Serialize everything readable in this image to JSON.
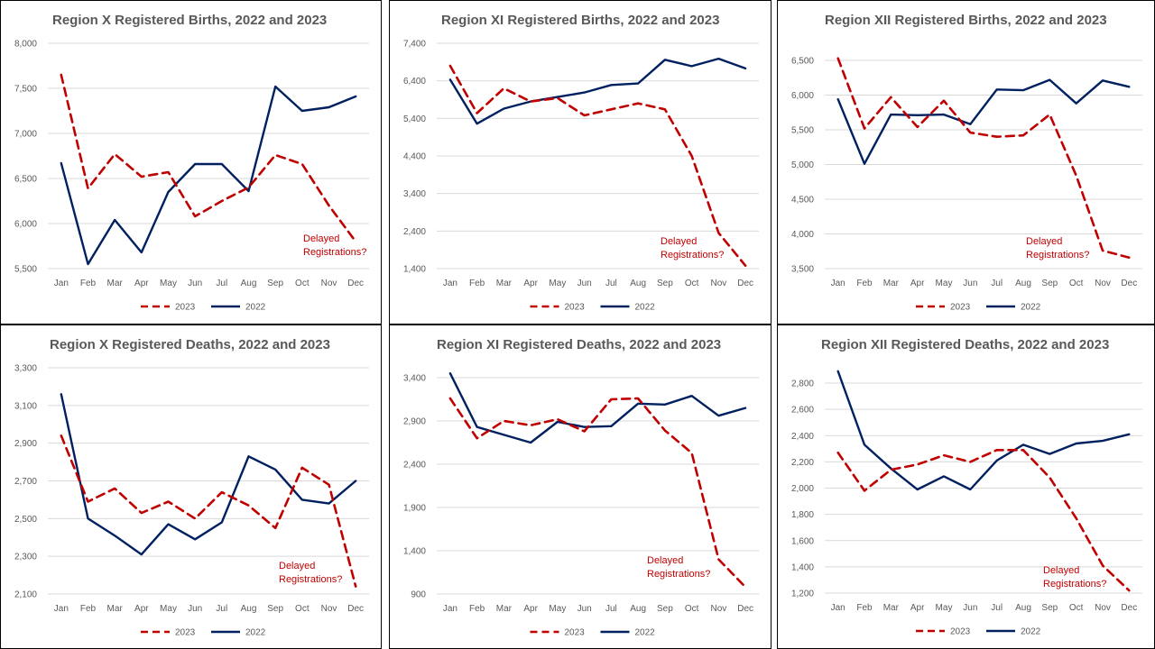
{
  "colors": {
    "series_2023": "#c00000",
    "series_2022": "#002060",
    "grid": "#d9d9d9",
    "text": "#595959"
  },
  "chart_data": [
    {
      "type": "line",
      "title": "Region X  Registered Births, 2022 and 2023",
      "categories": [
        "Jan",
        "Feb",
        "Mar",
        "Apr",
        "May",
        "Jun",
        "Jul",
        "Aug",
        "Sep",
        "Oct",
        "Nov",
        "Dec"
      ],
      "ylim": [
        5500,
        8000
      ],
      "yticks": [
        5500,
        6000,
        6500,
        7000,
        7500,
        8000
      ],
      "tick_labels": [
        "5,500",
        "6,000",
        "6,500",
        "7,000",
        "7,500",
        "8,000"
      ],
      "series": [
        {
          "name": "2023",
          "style": "dashed",
          "values": [
            7650,
            6390,
            6770,
            6520,
            6570,
            6080,
            6250,
            6400,
            6760,
            6660,
            6200,
            5800
          ]
        },
        {
          "name": "2022",
          "style": "solid",
          "values": [
            6670,
            5550,
            6040,
            5680,
            6350,
            6660,
            6660,
            6360,
            7520,
            7250,
            7290,
            7410
          ]
        }
      ],
      "annotation": [
        "Delayed",
        "Registrations?"
      ],
      "grid": true,
      "legend": "bottom"
    },
    {
      "type": "line",
      "title": "Region XI  Registered Births, 2022 and 2023",
      "categories": [
        "Jan",
        "Feb",
        "Mar",
        "Apr",
        "May",
        "Jun",
        "Jul",
        "Aug",
        "Sep",
        "Oct",
        "Nov",
        "Dec"
      ],
      "ylim": [
        1400,
        7400
      ],
      "yticks": [
        1400,
        2400,
        3400,
        4400,
        5400,
        6400,
        7400
      ],
      "tick_labels": [
        "1,400",
        "2,400",
        "3,400",
        "4,400",
        "5,400",
        "6,400",
        "7,400"
      ],
      "series": [
        {
          "name": "2023",
          "style": "dashed",
          "values": [
            6800,
            5540,
            6200,
            5850,
            5940,
            5480,
            5640,
            5800,
            5640,
            4400,
            2350,
            1480
          ]
        },
        {
          "name": "2022",
          "style": "solid",
          "values": [
            6430,
            5260,
            5660,
            5850,
            5970,
            6090,
            6290,
            6330,
            6960,
            6790,
            6990,
            6730
          ]
        }
      ],
      "annotation": [
        "Delayed",
        "Registrations?"
      ],
      "grid": true,
      "legend": "bottom"
    },
    {
      "type": "line",
      "title": "Region XII  Registered Births, 2022 and 2023",
      "categories": [
        "Jan",
        "Feb",
        "Mar",
        "Apr",
        "May",
        "Jun",
        "Jul",
        "Aug",
        "Sep",
        "Oct",
        "Nov",
        "Dec"
      ],
      "ylim": [
        3500,
        6500
      ],
      "yticks": [
        3500,
        4000,
        4500,
        5000,
        5500,
        6000,
        6500
      ],
      "tick_labels": [
        "3,500",
        "4,000",
        "4,500",
        "5,000",
        "5,500",
        "6,000",
        "6,500"
      ],
      "series": [
        {
          "name": "2023",
          "style": "dashed",
          "values": [
            6530,
            5520,
            5970,
            5540,
            5920,
            5460,
            5400,
            5420,
            5720,
            4840,
            3760,
            3660
          ]
        },
        {
          "name": "2022",
          "style": "solid",
          "values": [
            5940,
            5010,
            5720,
            5710,
            5720,
            5580,
            6080,
            6070,
            6220,
            5880,
            6210,
            6120
          ]
        }
      ],
      "annotation": [
        "Delayed",
        "Registrations?"
      ],
      "grid": true,
      "legend": "bottom"
    },
    {
      "type": "line",
      "title": "Region X  Registered Deaths, 2022 and 2023",
      "categories": [
        "Jan",
        "Feb",
        "Mar",
        "Apr",
        "May",
        "Jun",
        "Jul",
        "Aug",
        "Sep",
        "Oct",
        "Nov",
        "Dec"
      ],
      "ylim": [
        2100,
        3300
      ],
      "yticks": [
        2100,
        2300,
        2500,
        2700,
        2900,
        3100,
        3300
      ],
      "tick_labels": [
        "2,100",
        "2,300",
        "2,500",
        "2,700",
        "2,900",
        "3,100",
        "3,300"
      ],
      "series": [
        {
          "name": "2023",
          "style": "dashed",
          "values": [
            2940,
            2590,
            2660,
            2530,
            2590,
            2500,
            2640,
            2570,
            2450,
            2770,
            2680,
            2140
          ]
        },
        {
          "name": "2022",
          "style": "solid",
          "values": [
            3160,
            2500,
            2410,
            2310,
            2470,
            2390,
            2480,
            2830,
            2760,
            2600,
            2580,
            2700
          ]
        }
      ],
      "annotation": [
        "Delayed",
        "Registrations?"
      ],
      "grid": true,
      "legend": "bottom"
    },
    {
      "type": "line",
      "title": "Region XI  Registered Deaths, 2022 and 2023",
      "categories": [
        "Jan",
        "Feb",
        "Mar",
        "Apr",
        "May",
        "Jun",
        "Jul",
        "Aug",
        "Sep",
        "Oct",
        "Nov",
        "Dec"
      ],
      "ylim": [
        900,
        3400
      ],
      "yticks": [
        900,
        1400,
        1900,
        2400,
        2900,
        3400
      ],
      "tick_labels": [
        "900",
        "1,400",
        "1,900",
        "2,400",
        "2,900",
        "3,400"
      ],
      "series": [
        {
          "name": "2023",
          "style": "dashed",
          "values": [
            3160,
            2700,
            2900,
            2850,
            2920,
            2780,
            3150,
            3160,
            2790,
            2530,
            1300,
            980
          ]
        },
        {
          "name": "2022",
          "style": "solid",
          "values": [
            3450,
            2830,
            2740,
            2650,
            2890,
            2830,
            2840,
            3100,
            3090,
            3190,
            2960,
            3050
          ]
        }
      ],
      "annotation": [
        "Delayed",
        "Registrations?"
      ],
      "grid": true,
      "legend": "bottom"
    },
    {
      "type": "line",
      "title": "Region XII  Registered Deaths, 2022 and 2023",
      "categories": [
        "Jan",
        "Feb",
        "Mar",
        "Apr",
        "May",
        "Jun",
        "Jul",
        "Aug",
        "Sep",
        "Oct",
        "Nov",
        "Dec"
      ],
      "ylim": [
        1200,
        2800
      ],
      "yticks": [
        1200,
        1400,
        1600,
        1800,
        2000,
        2200,
        2400,
        2600,
        2800
      ],
      "tick_labels": [
        "1,200",
        "1,400",
        "1,600",
        "1,800",
        "2,000",
        "2,200",
        "2,400",
        "2,600",
        "2,800"
      ],
      "series": [
        {
          "name": "2023",
          "style": "dashed",
          "values": [
            2270,
            1980,
            2140,
            2180,
            2250,
            2200,
            2290,
            2290,
            2080,
            1770,
            1410,
            1220
          ]
        },
        {
          "name": "2022",
          "style": "solid",
          "values": [
            2890,
            2330,
            2150,
            1990,
            2090,
            1990,
            2210,
            2330,
            2260,
            2340,
            2360,
            2410
          ]
        }
      ],
      "annotation": [
        "Delayed",
        "Registrations?"
      ],
      "grid": true,
      "legend": "bottom"
    }
  ]
}
